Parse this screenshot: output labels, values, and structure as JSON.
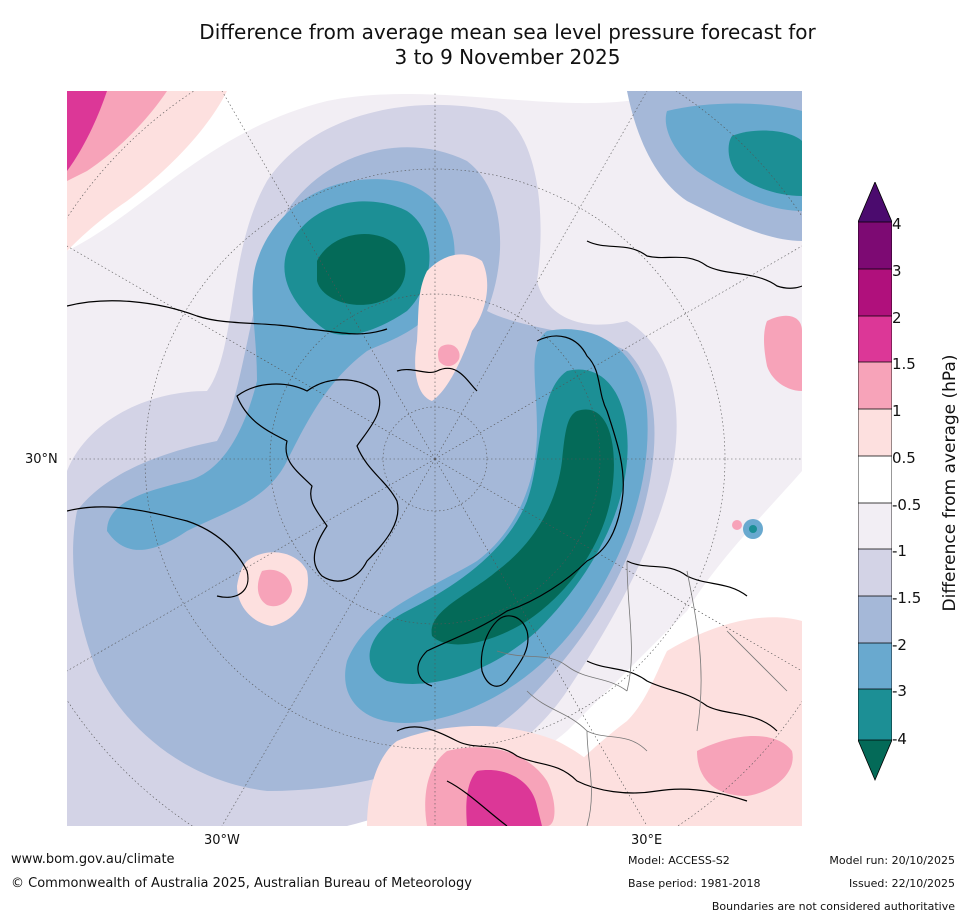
{
  "title": {
    "line1": "Difference from average mean sea level pressure forecast for",
    "line2": "3 to 9 November 2025"
  },
  "map": {
    "projection": "North polar stereographic",
    "lat_label": "30°N",
    "lon_labels": {
      "left": "30°W",
      "right": "30°E"
    }
  },
  "colorbar": {
    "title": "Difference from average (hPa)",
    "ticks": [
      "4",
      "3",
      "2",
      "1.5",
      "1",
      "0.5",
      "-0.5",
      "-1",
      "-1.5",
      "-2",
      "-3",
      "-4"
    ],
    "colors": {
      "gt4": "#4b0b6e",
      "c3_4": "#7d0a73",
      "c2_3": "#b0107c",
      "c1_5_2": "#dc3797",
      "c1_1_5": "#f7a3b9",
      "c0_5_1": "#fde0df",
      "neutral": "#ffffff",
      "n0_5_1": "#f2eef4",
      "n1_1_5": "#d3d3e6",
      "n1_5_2": "#a5b8d8",
      "n2_3": "#69a9cf",
      "n3_4": "#1c8f95",
      "lt4": "#046a58"
    }
  },
  "footer": {
    "url": "www.bom.gov.au/climate",
    "copyright": "© Commonwealth of Australia 2025, Australian Bureau of Meteorology",
    "model": "Model: ACCESS-S2",
    "base_period": "Base period: 1981-2018",
    "model_run": "Model run: 20/10/2025",
    "issued": "Issued: 22/10/2025",
    "disclaimer": "Boundaries are not considered authoritative"
  }
}
